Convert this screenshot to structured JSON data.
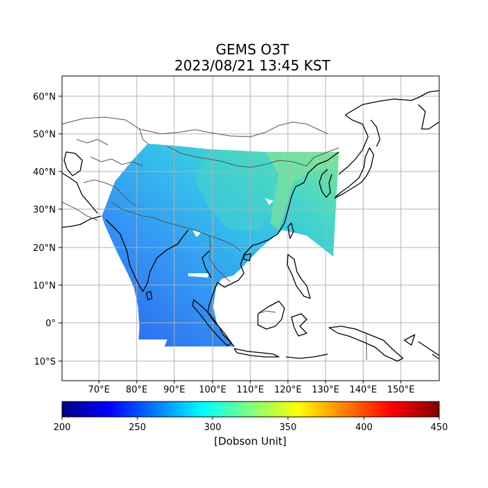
{
  "title": {
    "line1": "GEMS O3T",
    "line2": "2023/08/21 13:45 KST"
  },
  "map": {
    "lon_ticks": [
      "70°E",
      "80°E",
      "90°E",
      "100°E",
      "110°E",
      "120°E",
      "130°E",
      "140°E",
      "150°E"
    ],
    "lat_ticks": [
      "60°N",
      "50°N",
      "40°N",
      "30°N",
      "20°N",
      "10°N",
      "0°",
      "10°S"
    ],
    "grid": true,
    "data_colors": [
      "#2f6bf0",
      "#3c8ff5",
      "#3aa9f2",
      "#33c6e8",
      "#42d8c8",
      "#7fe29a"
    ]
  },
  "colorbar": {
    "ticks": [
      "200",
      "250",
      "300",
      "350",
      "400",
      "450"
    ],
    "label": "[Dobson Unit]",
    "colormap": [
      "#00007f",
      "#0000ff",
      "#007fff",
      "#00ffff",
      "#7fff7f",
      "#ffff00",
      "#ff7f00",
      "#ff0000",
      "#7f0000"
    ]
  }
}
